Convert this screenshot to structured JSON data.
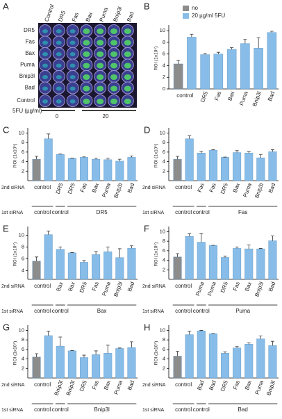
{
  "panel_a": {
    "letter": "A",
    "columns": [
      "Control",
      "DR5",
      "Fas",
      "Bax",
      "Puma",
      "Bnip3l",
      "Bad"
    ],
    "rows": [
      "DR5",
      "Fas",
      "Bax",
      "Puma",
      "Bnip3l",
      "Bad"
    ],
    "control_row": "Control",
    "treatment_label": "5FU (µg/ml)",
    "doses": [
      0,
      20
    ]
  },
  "chart_data": [
    {
      "type": "bar",
      "letter": "B",
      "ylabel": "ROI (1x10⁵)",
      "categories": [
        null,
        "control",
        "DR5",
        "Fas",
        "Bax",
        "Puma",
        "Bnip3l",
        "Bad"
      ],
      "values": [
        4.3,
        8.9,
        5.9,
        6.0,
        6.8,
        7.8,
        7.0,
        9.7
      ],
      "errors": [
        0.6,
        0.5,
        0.2,
        0.3,
        0.3,
        0.7,
        1.8,
        0.2
      ],
      "colors": [
        "#8c8c8c",
        "#87bde8",
        "#87bde8",
        "#87bde8",
        "#87bde8",
        "#87bde8",
        "#87bde8",
        "#87bde8"
      ],
      "ylim": [
        0,
        10.5
      ],
      "yticks": [
        0,
        2,
        4,
        6,
        8,
        10
      ],
      "legend": [
        {
          "name": "no",
          "color": "#8c8c8c"
        },
        {
          "name": "20 µg/ml 5FU",
          "color": "#87bde8"
        }
      ]
    },
    {
      "type": "bar",
      "letter": "C",
      "ylabel": "ROI (1x10⁵)",
      "row_labels": [
        "2nd siRNA",
        "1st siRNA"
      ],
      "first_sirna": [
        "control",
        "control",
        "DR5"
      ],
      "categories": [
        null,
        "control",
        "DR5",
        "DR5",
        "Fas",
        "Bax",
        "Puma",
        "Bnip3l",
        "Bad"
      ],
      "values": [
        4.5,
        8.8,
        5.5,
        4.7,
        4.9,
        4.5,
        4.4,
        4.1,
        4.9
      ],
      "errors": [
        0.6,
        1.0,
        0.1,
        0.05,
        0.1,
        0.2,
        0.3,
        0.4,
        0.3
      ],
      "colors": [
        "#8c8c8c",
        "#87bde8",
        "#87bde8",
        "#87bde8",
        "#87bde8",
        "#87bde8",
        "#87bde8",
        "#87bde8",
        "#87bde8"
      ],
      "ylim": [
        0,
        10.5
      ],
      "yticks": [
        2,
        4,
        6,
        8,
        10
      ]
    },
    {
      "type": "bar",
      "letter": "D",
      "ylabel": "ROI (1x10⁵)",
      "row_labels": [
        "2nd siRNA",
        "1st siRNA"
      ],
      "first_sirna": [
        "control",
        "control",
        "Fas"
      ],
      "categories": [
        null,
        "control",
        "Fas",
        "Fas",
        "DR5",
        "Bax",
        "Puma",
        "Bnip3l",
        "Bad"
      ],
      "values": [
        4.5,
        8.8,
        5.8,
        6.4,
        4.9,
        5.9,
        5.8,
        4.8,
        6.1
      ],
      "errors": [
        0.6,
        0.6,
        0.4,
        0.1,
        0.05,
        0.4,
        0.3,
        0.7,
        0.4
      ],
      "colors": [
        "#8c8c8c",
        "#87bde8",
        "#87bde8",
        "#87bde8",
        "#87bde8",
        "#87bde8",
        "#87bde8",
        "#87bde8",
        "#87bde8"
      ],
      "ylim": [
        0,
        10.5
      ],
      "yticks": [
        2,
        4,
        6,
        8,
        10
      ]
    },
    {
      "type": "bar",
      "letter": "E",
      "ylabel": "ROI (1x10⁵)",
      "row_labels": [
        "2nd siRNA",
        "1st siRNA"
      ],
      "first_sirna": [
        "control",
        "control",
        "Bax"
      ],
      "categories": [
        null,
        "control",
        "Bax",
        "Bax",
        "DR5",
        "Fas",
        "Puma",
        "Bnip3l",
        "Bad"
      ],
      "values": [
        5.6,
        10.1,
        7.6,
        7.0,
        5.4,
        6.7,
        7.2,
        6.2,
        7.8
      ],
      "errors": [
        0.7,
        0.6,
        0.4,
        0.05,
        0.3,
        0.5,
        0.8,
        1.5,
        0.4
      ],
      "colors": [
        "#8c8c8c",
        "#87bde8",
        "#87bde8",
        "#87bde8",
        "#87bde8",
        "#87bde8",
        "#87bde8",
        "#87bde8",
        "#87bde8"
      ],
      "ylim": [
        2.5,
        11
      ],
      "yticks": [
        4,
        6,
        8,
        10
      ]
    },
    {
      "type": "bar",
      "letter": "F",
      "ylabel": "ROI (1x10⁵)",
      "row_labels": [
        "2nd siRNA",
        "1st siRNA"
      ],
      "first_sirna": [
        "control",
        "control",
        "Puma"
      ],
      "categories": [
        null,
        "control",
        "Puma",
        "Puma",
        "DR5",
        "Fas",
        "Bax",
        "Bnip3l",
        "Bad"
      ],
      "values": [
        4.7,
        9.0,
        7.8,
        7.1,
        4.6,
        6.5,
        6.4,
        6.4,
        8.1
      ],
      "errors": [
        0.7,
        0.6,
        1.8,
        0.05,
        0.3,
        0.3,
        0.8,
        0.1,
        1.0
      ],
      "colors": [
        "#8c8c8c",
        "#87bde8",
        "#87bde8",
        "#87bde8",
        "#87bde8",
        "#87bde8",
        "#87bde8",
        "#87bde8",
        "#87bde8"
      ],
      "ylim": [
        0,
        10.5
      ],
      "yticks": [
        2,
        4,
        6,
        8,
        10
      ]
    },
    {
      "type": "bar",
      "letter": "G",
      "ylabel": "ROI (1x10⁵)",
      "row_labels": [
        "2nd siRNA",
        "1st siRNA"
      ],
      "first_sirna": [
        "control",
        "control",
        "Bnip3l"
      ],
      "categories": [
        null,
        "control",
        "Bnip3l",
        "Bnip3l",
        "DR5",
        "Fas",
        "Bax",
        "Puma",
        "Bad"
      ],
      "values": [
        4.4,
        8.9,
        6.7,
        5.7,
        4.3,
        4.9,
        5.2,
        6.2,
        6.4
      ],
      "errors": [
        0.7,
        0.9,
        1.9,
        0.05,
        0.5,
        0.8,
        1.7,
        0.1,
        1.2
      ],
      "colors": [
        "#8c8c8c",
        "#87bde8",
        "#87bde8",
        "#87bde8",
        "#87bde8",
        "#87bde8",
        "#87bde8",
        "#87bde8",
        "#87bde8"
      ],
      "ylim": [
        0,
        10.5
      ],
      "yticks": [
        2,
        4,
        6,
        8,
        10
      ]
    },
    {
      "type": "bar",
      "letter": "H",
      "ylabel": "ROI (1x10⁵)",
      "row_labels": [
        "2nd siRNA",
        "1st siRNA"
      ],
      "first_sirna": [
        "control",
        "control",
        "Bad"
      ],
      "categories": [
        null,
        "control",
        "Bad",
        "Bad",
        "DR5",
        "Fas",
        "Bax",
        "Puma",
        "Bnip3l"
      ],
      "values": [
        4.6,
        9.1,
        9.9,
        9.3,
        5.2,
        6.3,
        7.1,
        8.2,
        6.8
      ],
      "errors": [
        1.0,
        0.7,
        0.1,
        0.05,
        0.3,
        0.3,
        0.3,
        0.6,
        0.9
      ],
      "colors": [
        "#8c8c8c",
        "#87bde8",
        "#87bde8",
        "#87bde8",
        "#87bde8",
        "#87bde8",
        "#87bde8",
        "#87bde8",
        "#87bde8"
      ],
      "ylim": [
        0,
        10.5
      ],
      "yticks": [
        2,
        4,
        6,
        8,
        10
      ]
    }
  ]
}
